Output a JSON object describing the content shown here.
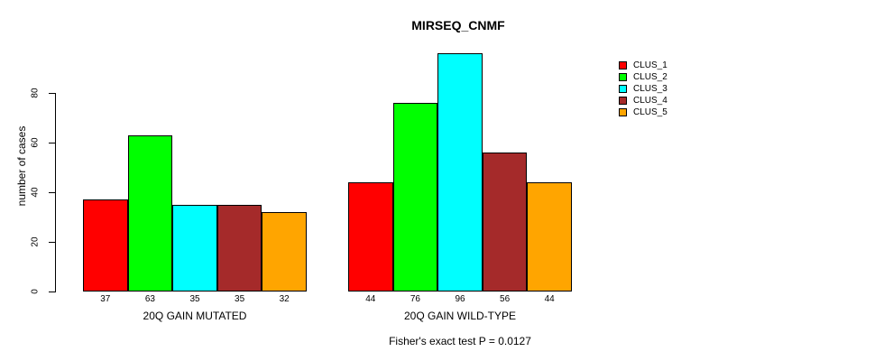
{
  "chart_data": {
    "type": "bar",
    "title": "MIRSEQ_CNMF",
    "ylabel": "number of cases",
    "xlabel": "",
    "yticks": [
      0,
      20,
      40,
      60,
      80
    ],
    "ylim": [
      0,
      96
    ],
    "grid": false,
    "legend_position": "right",
    "categories": [
      "20Q GAIN MUTATED",
      "20Q GAIN WILD-TYPE"
    ],
    "series": [
      {
        "name": "CLUS_1",
        "color": "#FF0000",
        "values": [
          37,
          44
        ]
      },
      {
        "name": "CLUS_2",
        "color": "#00FF00",
        "values": [
          63,
          76
        ]
      },
      {
        "name": "CLUS_3",
        "color": "#00FFFF",
        "values": [
          35,
          96
        ]
      },
      {
        "name": "CLUS_4",
        "color": "#A52A2A",
        "values": [
          35,
          56
        ]
      },
      {
        "name": "CLUS_5",
        "color": "#FFA500",
        "values": [
          32,
          44
        ]
      }
    ],
    "bar_value_labels": [
      [
        37,
        63,
        35,
        35,
        32
      ],
      [
        44,
        76,
        96,
        56,
        44
      ]
    ],
    "annotation": "Fisher's exact test P = 0.0127"
  }
}
